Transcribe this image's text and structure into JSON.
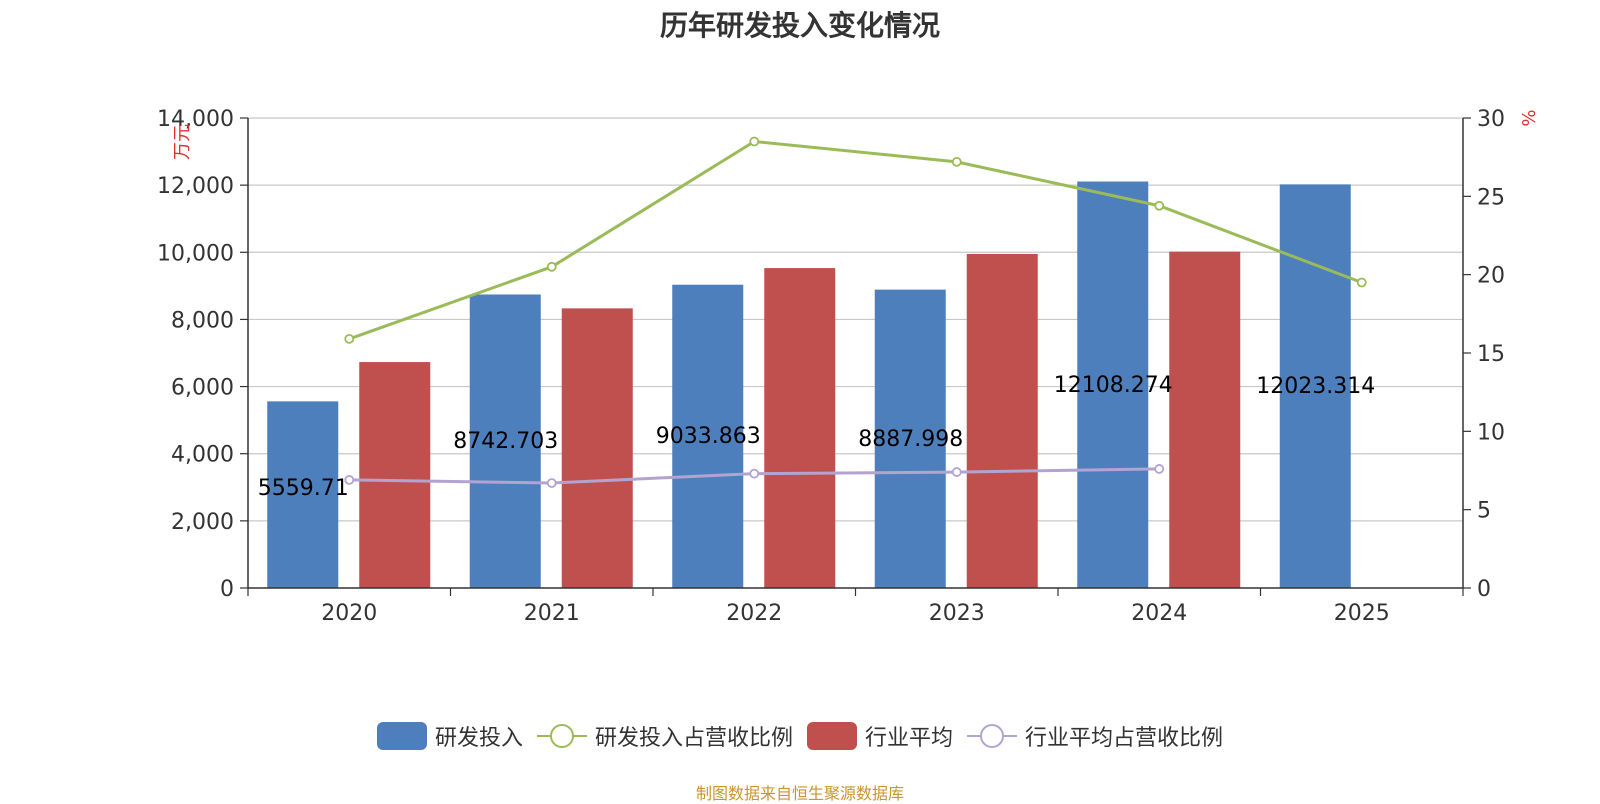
{
  "colors": {
    "bar_rd": "#4e7fbd",
    "bar_industry": "#c0504d",
    "line_rd_ratio": "#9bbb59",
    "line_industry_ratio": "#b3a3d1",
    "unit_red": "#e03030",
    "source_text": "#c9952c",
    "axis": "#333333",
    "grid": "#c8c8c8"
  },
  "legend": [
    {
      "label": "研发投入",
      "kind": "bar",
      "color_key": "bar_rd"
    },
    {
      "label": "研发投入占营收比例",
      "kind": "line",
      "color_key": "line_rd_ratio"
    },
    {
      "label": "行业平均",
      "kind": "bar",
      "color_key": "bar_industry"
    },
    {
      "label": "行业平均占营收比例",
      "kind": "line",
      "color_key": "line_industry_ratio"
    }
  ],
  "source": "制图数据来自恒生聚源数据库",
  "chart_data": {
    "type": "bar",
    "title": "历年研发投入变化情况",
    "categories": [
      "2020",
      "2021",
      "2022",
      "2023",
      "2024",
      "2025"
    ],
    "ylabel": "万元",
    "ylabel_right": "%",
    "ylim": [
      0,
      14000
    ],
    "yticks": [
      "0",
      "2,000",
      "4,000",
      "6,000",
      "8,000",
      "10,000",
      "12,000",
      "14,000"
    ],
    "ylim_right": [
      0,
      30
    ],
    "yticks_right": [
      "0",
      "5",
      "10",
      "15",
      "20",
      "25",
      "30"
    ],
    "grid": true,
    "legend_position": "bottom",
    "series": [
      {
        "name": "研发投入",
        "type": "bar",
        "axis": "left",
        "values": [
          5559.71,
          8742.703,
          9033.863,
          8887.998,
          12108.274,
          12023.314
        ],
        "data_labels": [
          "5559.71",
          "8742.703",
          "9033.863",
          "8887.998",
          "12108.274",
          "12023.314"
        ]
      },
      {
        "name": "行业平均",
        "type": "bar",
        "axis": "left",
        "values": [
          6730,
          8330,
          9530,
          9950,
          10020,
          null
        ]
      },
      {
        "name": "研发投入占营收比例",
        "type": "line",
        "axis": "right",
        "values": [
          15.9,
          20.5,
          28.5,
          27.2,
          24.4,
          19.5
        ]
      },
      {
        "name": "行业平均占营收比例",
        "type": "line",
        "axis": "right",
        "values": [
          6.9,
          6.7,
          7.3,
          7.4,
          7.6,
          null
        ]
      }
    ]
  }
}
